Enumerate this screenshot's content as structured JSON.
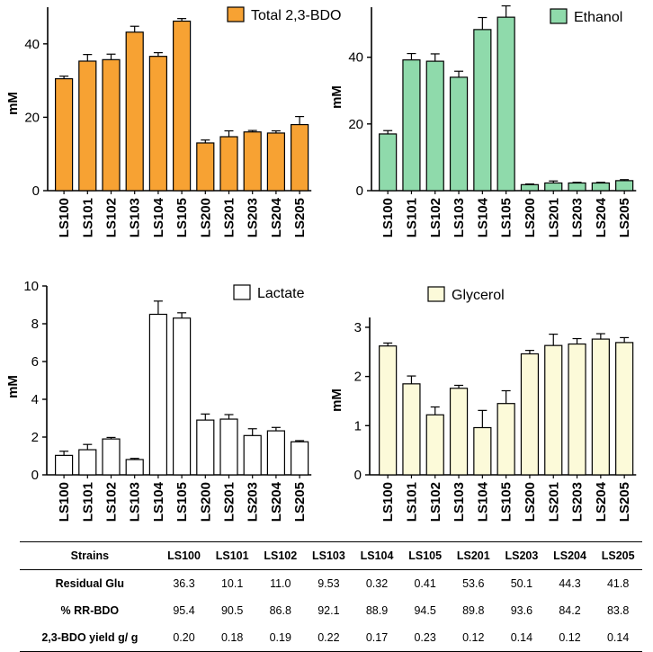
{
  "chart_data": [
    {
      "type": "bar",
      "title": "",
      "legend": "Total 2,3-BDO",
      "color": "#F7A233",
      "ylabel": "mM",
      "ylim": [
        0,
        50
      ],
      "yticks": [
        0,
        20,
        40
      ],
      "categories": [
        "LS100",
        "LS101",
        "LS102",
        "LS103",
        "LS104",
        "LS105",
        "LS200",
        "LS201",
        "LS203",
        "LS204",
        "LS205"
      ],
      "values": [
        30.5,
        35.3,
        35.7,
        43.2,
        36.6,
        46.2,
        13.0,
        14.7,
        16.0,
        15.7,
        18.0
      ],
      "errors": [
        0.7,
        1.8,
        1.5,
        1.6,
        1.0,
        0.7,
        0.8,
        1.6,
        0.4,
        0.6,
        2.2
      ]
    },
    {
      "type": "bar",
      "title": "",
      "legend": "Ethanol",
      "color": "#8FDAAB",
      "ylabel": "mM",
      "ylim": [
        0,
        55
      ],
      "yticks": [
        0,
        20,
        40
      ],
      "categories": [
        "LS100",
        "LS101",
        "LS102",
        "LS103",
        "LS104",
        "LS105",
        "LS200",
        "LS201",
        "LS203",
        "LS204",
        "LS205"
      ],
      "values": [
        17.0,
        39.2,
        38.8,
        34.0,
        48.3,
        52.0,
        1.8,
        2.3,
        2.3,
        2.3,
        3.0
      ],
      "errors": [
        1.0,
        1.9,
        2.2,
        1.8,
        3.6,
        3.4,
        0.2,
        0.6,
        0.2,
        0.2,
        0.3
      ]
    },
    {
      "type": "bar",
      "title": "",
      "legend": "Lactate",
      "color": "#FFFFFF",
      "ylabel": "mM",
      "ylim": [
        0,
        10
      ],
      "yticks": [
        0,
        2,
        4,
        6,
        8,
        10
      ],
      "categories": [
        "LS100",
        "LS101",
        "LS102",
        "LS103",
        "LS104",
        "LS105",
        "LS200",
        "LS201",
        "LS203",
        "LS204",
        "LS205"
      ],
      "values": [
        1.03,
        1.33,
        1.9,
        0.81,
        8.5,
        8.3,
        2.9,
        2.95,
        2.08,
        2.33,
        1.75
      ],
      "errors": [
        0.22,
        0.28,
        0.08,
        0.06,
        0.7,
        0.28,
        0.32,
        0.24,
        0.36,
        0.18,
        0.06
      ]
    },
    {
      "type": "bar",
      "title": "",
      "legend": "Glycerol",
      "color": "#FCFAD9",
      "ylabel": "mM",
      "ylim": [
        0,
        3.2
      ],
      "yticks": [
        0,
        1,
        2,
        3
      ],
      "categories": [
        "LS100",
        "LS101",
        "LS102",
        "LS103",
        "LS104",
        "LS105",
        "LS200",
        "LS201",
        "LS203",
        "LS204",
        "LS205"
      ],
      "values": [
        2.62,
        1.85,
        1.22,
        1.76,
        0.96,
        1.45,
        2.46,
        2.63,
        2.66,
        2.76,
        2.69
      ],
      "errors": [
        0.06,
        0.16,
        0.16,
        0.06,
        0.35,
        0.26,
        0.07,
        0.23,
        0.11,
        0.11,
        0.1
      ]
    }
  ],
  "table": {
    "headers": [
      "Strains",
      "LS100",
      "LS101",
      "LS102",
      "LS103",
      "LS104",
      "LS105",
      "LS201",
      "LS203",
      "LS204",
      "LS205"
    ],
    "rows": [
      [
        "Residual Glu",
        "36.3",
        "10.1",
        "11.0",
        "9.53",
        "0.32",
        "0.41",
        "53.6",
        "50.1",
        "44.3",
        "41.8"
      ],
      [
        "% RR-BDO",
        "95.4",
        "90.5",
        "86.8",
        "92.1",
        "88.9",
        "94.5",
        "89.8",
        "93.6",
        "84.2",
        "83.8"
      ],
      [
        "2,3-BDO yield g/ g",
        "0.20",
        "0.18",
        "0.19",
        "0.22",
        "0.17",
        "0.23",
        "0.12",
        "0.14",
        "0.12",
        "0.14"
      ]
    ]
  }
}
